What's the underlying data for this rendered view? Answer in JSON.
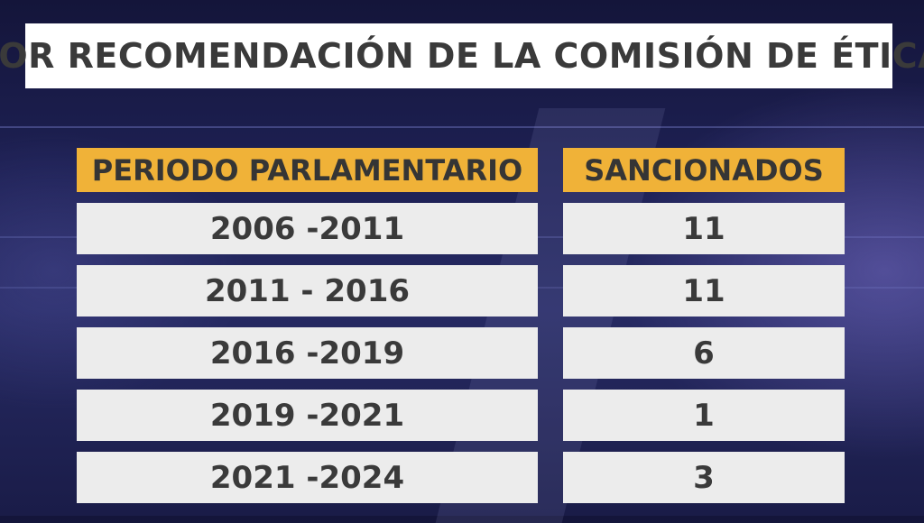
{
  "title": "POR RECOMENDACIÓN DE LA COMISIÓN DE ÉTICA",
  "table": {
    "headers": [
      "PERIODO PARLAMENTARIO",
      "SANCIONADOS"
    ],
    "rows": [
      {
        "period": "2006 -2011",
        "count": "11"
      },
      {
        "period": "2011 - 2016",
        "count": "11"
      },
      {
        "period": "2016 -2019",
        "count": "6"
      },
      {
        "period": "2019 -2021",
        "count": "1"
      },
      {
        "period": "2021 -2024",
        "count": "3"
      }
    ]
  },
  "colors": {
    "header_bg": "#f0b238",
    "row_bg": "#ececec",
    "title_bg": "#ffffff",
    "text": "#3a3a3a",
    "background": "#1e2155"
  }
}
